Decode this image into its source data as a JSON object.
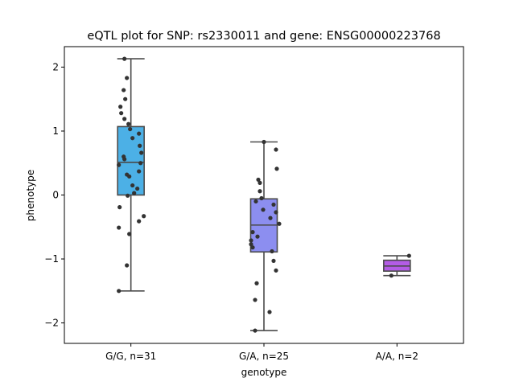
{
  "chart_data": {
    "type": "box",
    "title": "eQTL plot for SNP: rs2330011 and gene: ENSG00000223768",
    "xlabel": "genotype",
    "ylabel": "phenotype",
    "ylim": [
      -2.32,
      2.32
    ],
    "yticks": [
      -2,
      -1,
      0,
      1,
      2
    ],
    "ytick_labels": [
      "−2",
      "−1",
      "0",
      "1",
      "2"
    ],
    "grid": false,
    "legend": "none",
    "categories": [
      "G/G, n=31",
      "G/A, n=25",
      "A/A, n=2"
    ],
    "boxes": [
      {
        "category": "G/G, n=31",
        "color": "#4cb0e6",
        "whisker_low": -1.5,
        "q1": 0.0,
        "median": 0.51,
        "q3": 1.07,
        "whisker_high": 2.13
      },
      {
        "category": "G/A, n=25",
        "color": "#8c8ef0",
        "whisker_low": -2.12,
        "q1": -0.89,
        "median": -0.47,
        "q3": -0.06,
        "whisker_high": 0.83
      },
      {
        "category": "A/A, n=2",
        "color": "#b45ce6",
        "whisker_low": -1.26,
        "q1": -1.19,
        "median": -1.11,
        "q3": -1.02,
        "whisker_high": -0.95
      }
    ],
    "points": [
      [
        2.13,
        1.83,
        1.64,
        1.5,
        1.38,
        1.28,
        1.19,
        1.11,
        1.03,
        0.96,
        0.89,
        0.77,
        0.66,
        0.6,
        0.56,
        0.5,
        0.47,
        0.37,
        0.32,
        0.29,
        0.15,
        0.1,
        0.03,
        -0.01,
        -0.19,
        -0.33,
        -0.41,
        -0.51,
        -0.61,
        -1.1,
        -1.5
      ],
      [
        0.83,
        0.71,
        0.41,
        0.24,
        0.19,
        0.06,
        -0.05,
        -0.1,
        -0.15,
        -0.23,
        -0.27,
        -0.36,
        -0.45,
        -0.58,
        -0.65,
        -0.71,
        -0.77,
        -0.82,
        -0.88,
        -1.03,
        -1.18,
        -1.38,
        -1.64,
        -1.83,
        -2.12
      ],
      [
        -0.95,
        -1.26
      ]
    ]
  }
}
